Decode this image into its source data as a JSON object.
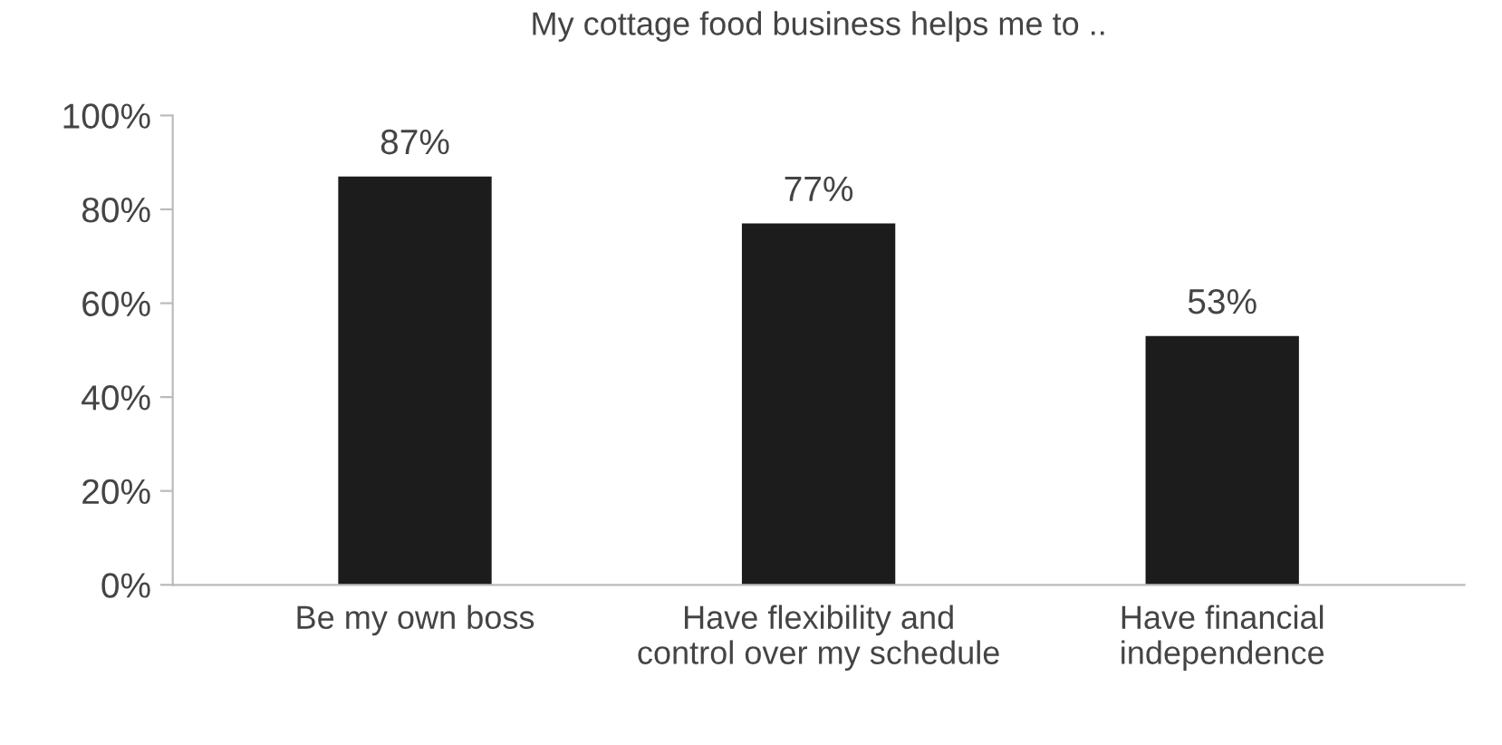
{
  "chart_data": {
    "type": "bar",
    "title": "My cottage food business helps me to ..",
    "categories": [
      "Be my own boss",
      "Have flexibility and\ncontrol over my schedule",
      "Have financial\nindependence"
    ],
    "values": [
      87,
      77,
      53
    ],
    "color": "#1c1c1c",
    "ylim": [
      0,
      100
    ],
    "yticks": [
      {
        "value": 0,
        "label": "0%"
      },
      {
        "value": 20,
        "label": "20%"
      },
      {
        "value": 40,
        "label": "40%"
      },
      {
        "value": 60,
        "label": "60%"
      },
      {
        "value": 80,
        "label": "80%"
      },
      {
        "value": 100,
        "label": "100%"
      }
    ],
    "value_labels": [
      "87%",
      "77%",
      "53%"
    ],
    "grid": false
  }
}
